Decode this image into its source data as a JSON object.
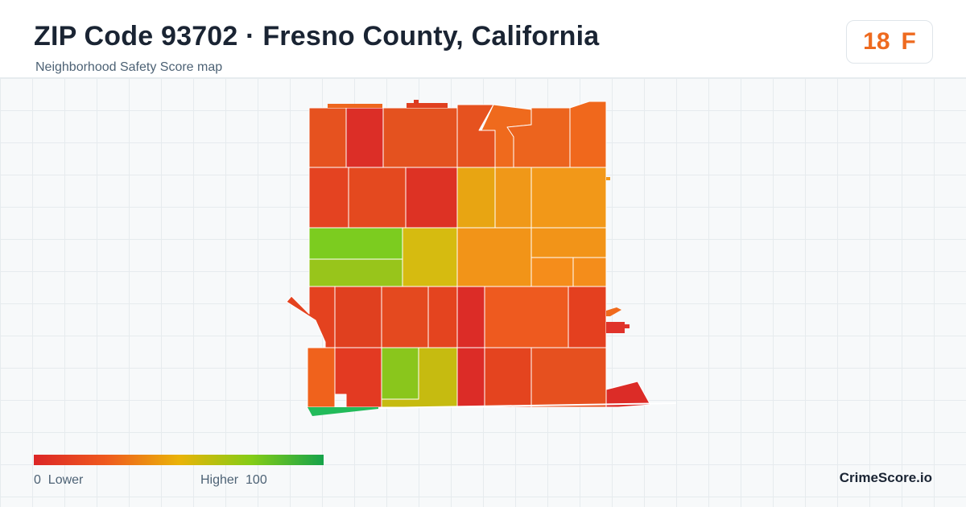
{
  "header": {
    "title": "ZIP Code 93702 · Fresno County, California",
    "subtitle": "Neighborhood Safety Score map"
  },
  "grade": {
    "score": "18",
    "letter": "F",
    "color": "#ee6a1f"
  },
  "legend": {
    "low_value": "0",
    "low_label": "Lower",
    "high_label": "Higher",
    "high_value": "100",
    "colors": [
      "#dc2626",
      "#ef5a1e",
      "#eab308",
      "#84cc16",
      "#16a34a"
    ]
  },
  "brand": "CrimeScore.io"
}
